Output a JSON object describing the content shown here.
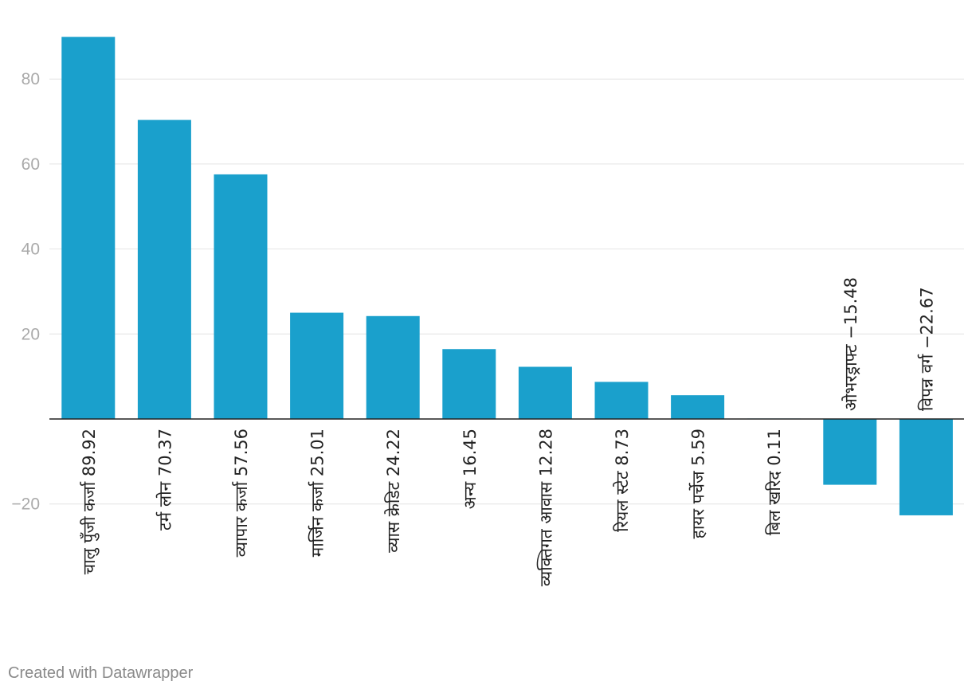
{
  "chart_data": {
    "type": "bar",
    "orientation": "vertical",
    "categories": [
      "चालु पुँजी कर्जा",
      "टर्म लोन",
      "व्यापार कर्जा",
      "मार्जिन कर्जा",
      "व्यास क्रेडिट",
      "अन्य",
      "व्यक्तिगत आवास",
      "रियल स्टेट",
      "हायर पर्चेज",
      "बिल खरिद",
      "ओभरड्राफ्ट",
      "विपन्न वर्ग"
    ],
    "values": [
      89.92,
      70.37,
      57.56,
      25.01,
      24.22,
      16.45,
      12.28,
      8.73,
      5.59,
      0.11,
      -15.48,
      -22.67
    ],
    "labels": [
      "चालु पुँजी कर्जा 89.92",
      "टर्म लोन 70.37",
      "व्यापार कर्जा 57.56",
      "मार्जिन कर्जा 25.01",
      "व्यास क्रेडिट 24.22",
      "अन्य 16.45",
      "व्यक्तिगत आवास 12.28",
      "रियल स्टेट 8.73",
      "हायर पर्चेज 5.59",
      "बिल खरिद 0.11",
      "ओभरड्राफ्ट −15.48",
      "विपन्न वर्ग −22.67"
    ],
    "y_ticks": [
      80,
      60,
      40,
      20,
      -20
    ],
    "y_tick_labels": [
      "80",
      "60",
      "40",
      "20",
      "−20"
    ],
    "ylim": [
      -22.67,
      89.92
    ],
    "grid": true,
    "bar_color": "#1aa0cc",
    "title": "",
    "xlabel": "",
    "ylabel": ""
  },
  "footer": {
    "credit": "Created with Datawrapper"
  }
}
